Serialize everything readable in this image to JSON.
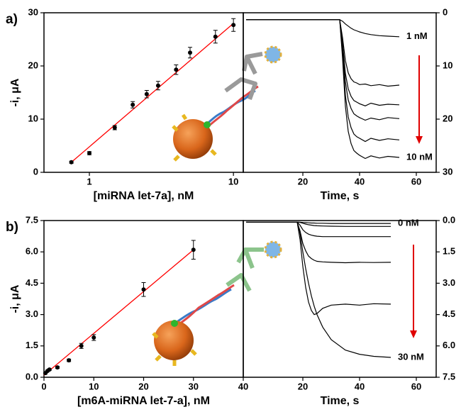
{
  "chart_data": [
    {
      "type": "scatter",
      "panel": "a)",
      "ylabel": "-i, μA",
      "xlabel": "[miRNA let-7a], nM",
      "x_log": true,
      "xlim": [
        0.484,
        11.7
      ],
      "xticks": [
        1,
        10
      ],
      "ylim": [
        0,
        30
      ],
      "yticks": [
        0,
        10,
        20,
        30
      ],
      "x": [
        0.75,
        1,
        1.5,
        2,
        2.5,
        3,
        4,
        5,
        7.5,
        10
      ],
      "values": [
        1.9,
        3.6,
        8.4,
        12.7,
        14.7,
        16.3,
        19.3,
        22.5,
        25.5,
        27.7
      ],
      "errors": [
        0.2,
        0.3,
        0.4,
        0.6,
        0.7,
        0.8,
        0.9,
        1.0,
        1.2,
        1.2
      ],
      "color": "#000000",
      "fit": {
        "x": [
          0.75,
          10
        ],
        "values": [
          1.9,
          28
        ],
        "color": "#ff0000"
      }
    },
    {
      "type": "line",
      "xlabel": "Time, s",
      "y_inverted": true,
      "xlim": [
        -1,
        67
      ],
      "xticks": [
        20,
        40,
        60
      ],
      "ylim": [
        0,
        30
      ],
      "yticks": [
        0,
        10,
        20,
        30
      ],
      "x": [
        0,
        10,
        20,
        30,
        33,
        34,
        35,
        36,
        37,
        38,
        39,
        40,
        42,
        44,
        47,
        50,
        54
      ],
      "series": [
        {
          "color": "#000000",
          "values": [
            1.3,
            1.3,
            1.3,
            1.3,
            1.3,
            1.6,
            2.1,
            2.5,
            2.9,
            3.2,
            3.4,
            3.6,
            3.9,
            4.1,
            4.3,
            4.4,
            4.5
          ]
        },
        {
          "color": "#000000",
          "values": [
            1.3,
            1.3,
            1.3,
            1.3,
            1.3,
            4.7,
            9.0,
            11.3,
            12.4,
            13.0,
            13.2,
            13.5,
            13.4,
            13.7,
            13.5,
            13.8,
            13.6
          ]
        },
        {
          "color": "#000000",
          "values": [
            1.3,
            1.3,
            1.3,
            1.3,
            1.3,
            5.8,
            11.4,
            14.3,
            15.7,
            16.5,
            16.8,
            17.1,
            17.5,
            17.0,
            17.4,
            17.2,
            17.3
          ]
        },
        {
          "color": "#000000",
          "values": [
            1.3,
            1.3,
            1.3,
            1.3,
            1.3,
            6.5,
            13.0,
            16.4,
            18.0,
            19.0,
            19.4,
            19.7,
            20.2,
            19.8,
            20.1,
            19.7,
            19.9
          ]
        },
        {
          "color": "#000000",
          "values": [
            1.3,
            1.3,
            1.3,
            1.3,
            1.3,
            7.6,
            15.5,
            19.6,
            21.6,
            22.8,
            23.3,
            23.6,
            24.2,
            23.6,
            24.0,
            23.7,
            23.9
          ]
        },
        {
          "color": "#000000",
          "values": [
            1.3,
            1.3,
            1.3,
            1.3,
            1.3,
            8.6,
            17.6,
            22.3,
            24.6,
            25.9,
            26.4,
            26.8,
            27.4,
            26.9,
            27.3,
            27.0,
            27.2
          ]
        }
      ],
      "annotations": [
        "1 nM",
        "10 nM"
      ]
    },
    {
      "type": "scatter",
      "panel": "b)",
      "ylabel": "-i, μA",
      "xlabel": "[m6A-miRNA let-7-a], nM",
      "x_log": false,
      "xlim": [
        0,
        40
      ],
      "xticks": [
        0,
        10,
        20,
        30,
        40
      ],
      "ylim": [
        0,
        7.5
      ],
      "yticks": [
        {
          "value": 0,
          "label": "0.0"
        },
        {
          "value": 1.5,
          "label": "1.5"
        },
        {
          "value": 3,
          "label": "3.0"
        },
        {
          "value": 4.5,
          "label": "4.5"
        },
        {
          "value": 6,
          "label": "6.0"
        },
        {
          "value": 7.5,
          "label": "7.5"
        }
      ],
      "x": [
        0.3,
        0.7,
        1.1,
        2.7,
        5,
        7.5,
        10,
        20,
        30
      ],
      "values": [
        0.2,
        0.3,
        0.37,
        0.47,
        0.81,
        1.5,
        1.9,
        4.2,
        6.1
      ],
      "errors": [
        0.03,
        0.03,
        0.04,
        0.05,
        0.06,
        0.12,
        0.14,
        0.33,
        0.45
      ],
      "color": "#000000",
      "fit": {
        "x": [
          0,
          30
        ],
        "values": [
          0.1,
          6.1
        ],
        "color": "#ff0000"
      }
    },
    {
      "type": "line",
      "xlabel": "Time, s",
      "y_inverted": true,
      "xlim": [
        -1,
        67
      ],
      "xticks": [
        20,
        40,
        60
      ],
      "ylim": [
        0,
        7.5
      ],
      "yticks": [
        {
          "value": 0,
          "label": "0.0"
        },
        {
          "value": 1.5,
          "label": "1.5"
        },
        {
          "value": 3,
          "label": "3.0"
        },
        {
          "value": 4.5,
          "label": "4.5"
        },
        {
          "value": 6,
          "label": "6.0"
        },
        {
          "value": 7.5,
          "label": "7.5"
        }
      ],
      "x": [
        0,
        10,
        18,
        19,
        20,
        21,
        22,
        23,
        24,
        25,
        27,
        30,
        35,
        40,
        45,
        51
      ],
      "series": [
        {
          "color": "#000000",
          "values": [
            0.07,
            0.07,
            0.07,
            0.08,
            0.09,
            0.1,
            0.11,
            0.12,
            0.12,
            0.13,
            0.13,
            0.14,
            0.14,
            0.14,
            0.14,
            0.14
          ]
        },
        {
          "color": "#000000",
          "values": [
            0.07,
            0.07,
            0.07,
            0.09,
            0.13,
            0.17,
            0.2,
            0.22,
            0.24,
            0.25,
            0.26,
            0.27,
            0.28,
            0.28,
            0.28,
            0.28
          ]
        },
        {
          "color": "#000000",
          "values": [
            0.07,
            0.07,
            0.07,
            0.22,
            0.44,
            0.57,
            0.65,
            0.7,
            0.73,
            0.75,
            0.77,
            0.77,
            0.77,
            0.77,
            0.77,
            0.77
          ]
        },
        {
          "color": "#000000",
          "values": [
            0.07,
            0.07,
            0.07,
            0.49,
            1.1,
            1.45,
            1.7,
            1.82,
            1.9,
            1.95,
            1.98,
            2.0,
            2.02,
            2.0,
            2.01,
            2.0
          ]
        },
        {
          "color": "#000000",
          "values": [
            0.07,
            0.07,
            0.07,
            0.9,
            2.2,
            3.2,
            3.9,
            4.3,
            4.5,
            4.45,
            4.2,
            4.05,
            4.0,
            4.05,
            3.98,
            4.0
          ]
        },
        {
          "color": "#000000",
          "values": [
            0.07,
            0.07,
            0.07,
            0.6,
            1.5,
            2.3,
            3.0,
            3.6,
            4.1,
            4.5,
            5.1,
            5.7,
            6.2,
            6.4,
            6.5,
            6.55
          ]
        }
      ],
      "annotations": [
        "0 nM",
        "30 nM"
      ]
    }
  ]
}
